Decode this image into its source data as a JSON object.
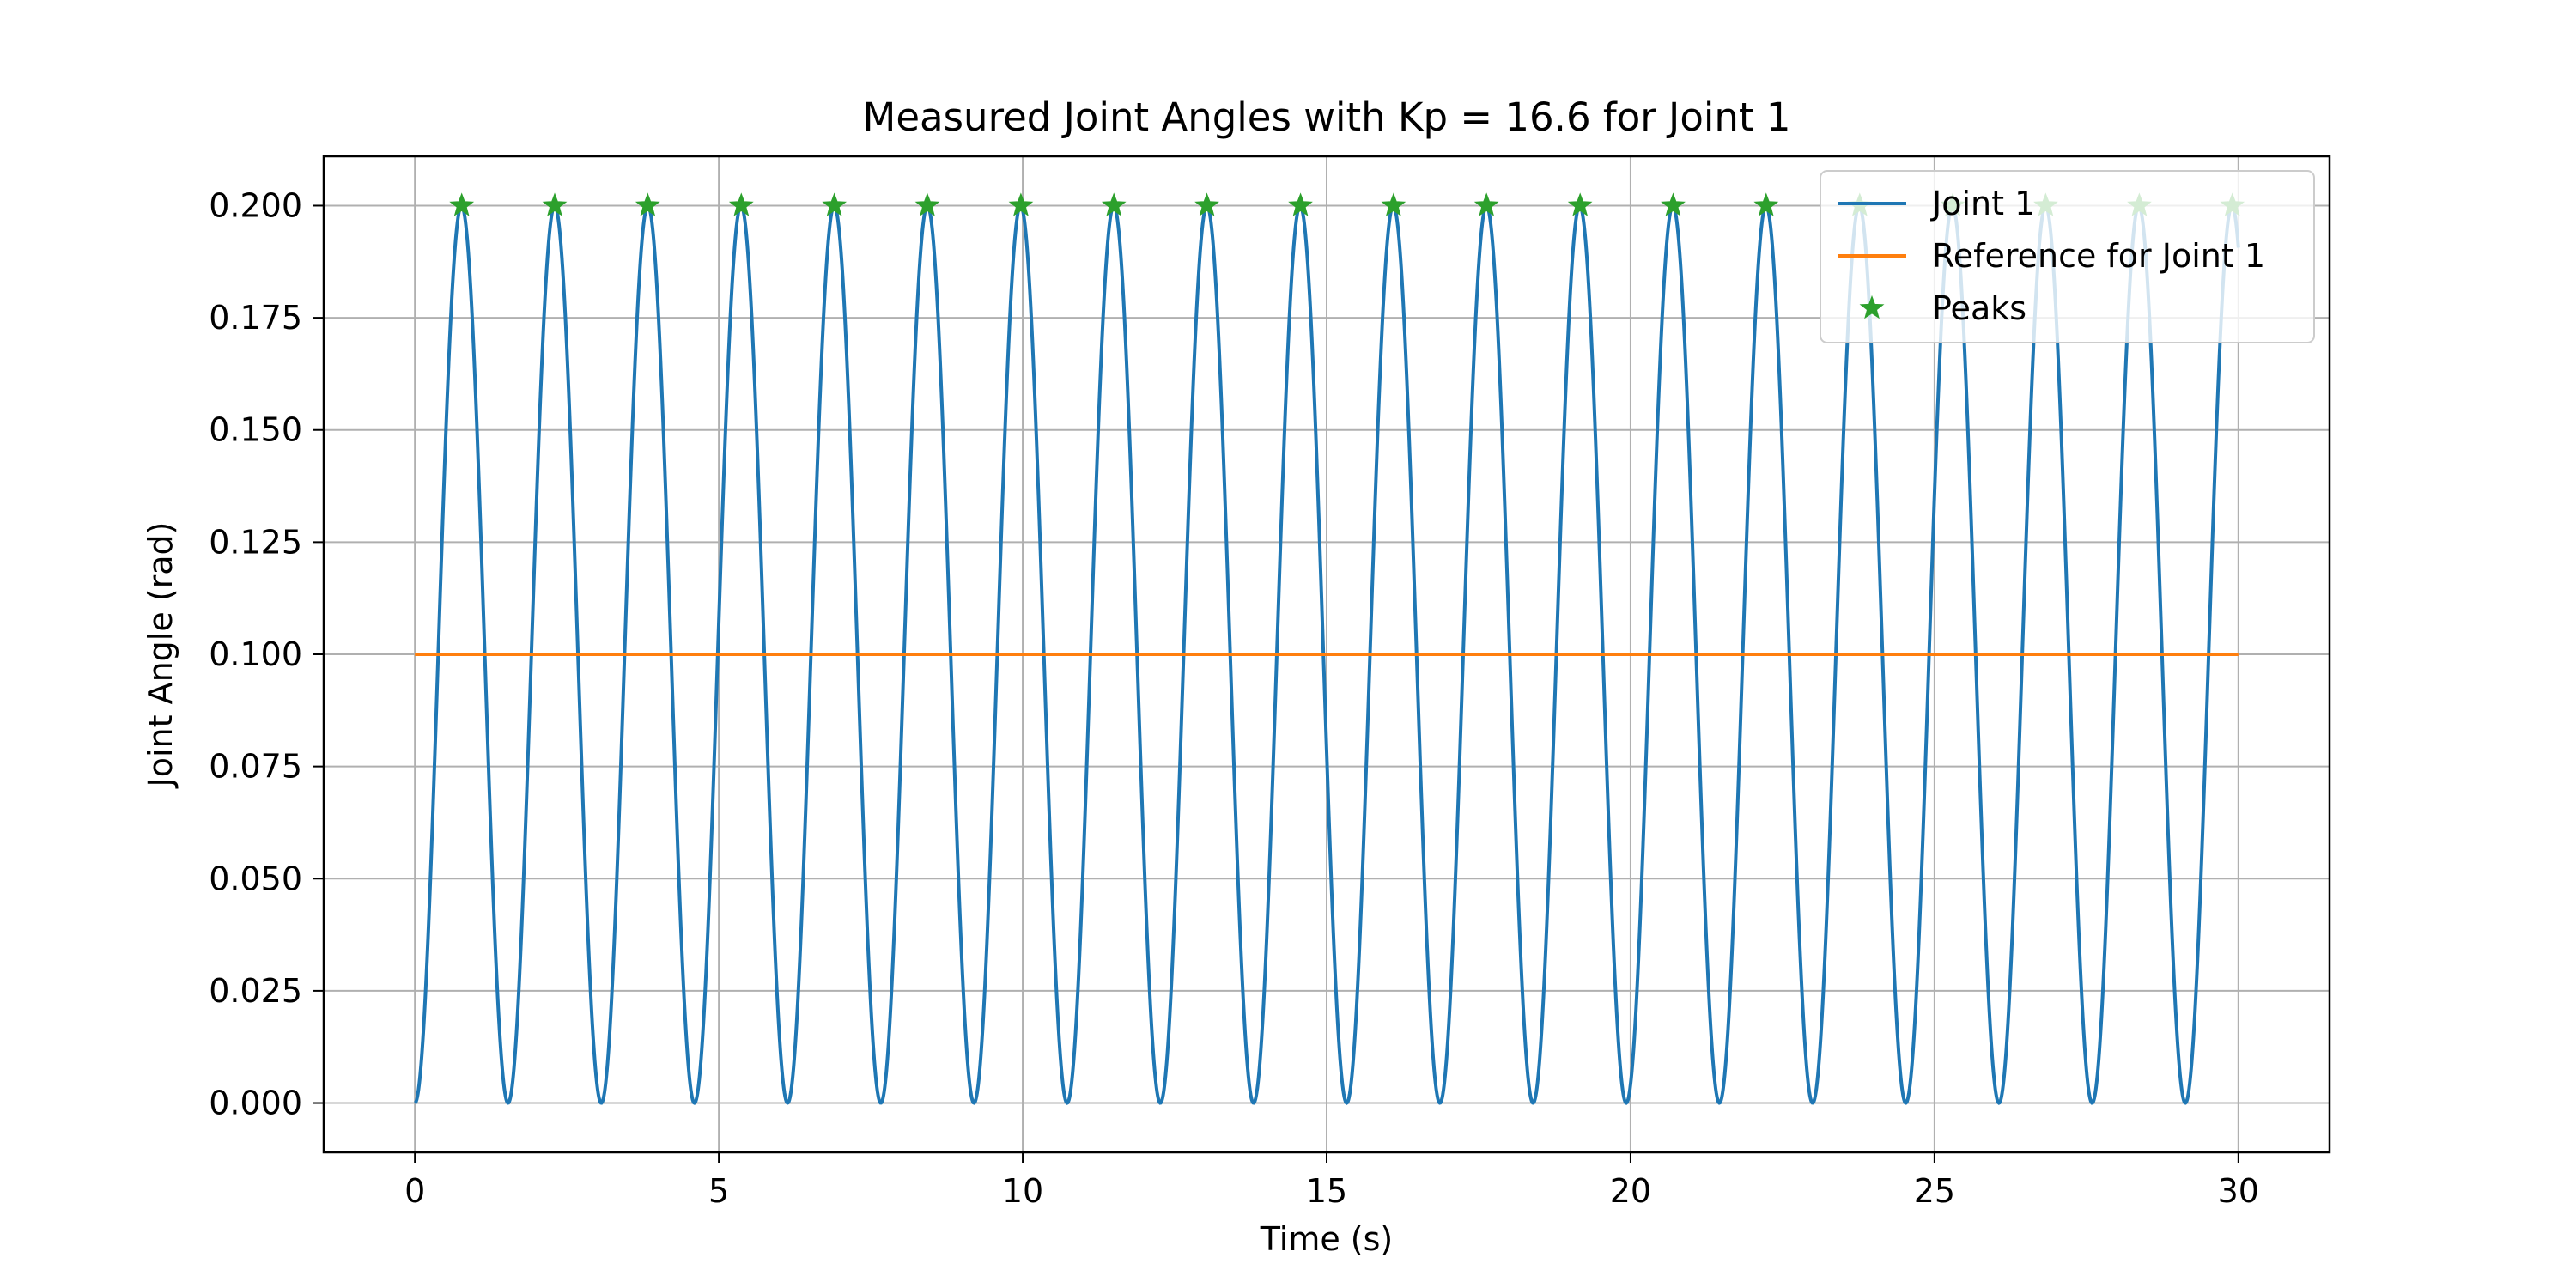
{
  "chart_data": {
    "type": "line",
    "title": "Measured Joint Angles with Kp = 16.6 for Joint 1",
    "xlabel": "Time (s)",
    "ylabel": "Joint Angle (rad)",
    "xlim": [
      -1.5,
      31.5
    ],
    "ylim": [
      -0.011,
      0.211
    ],
    "xticks": [
      0,
      5,
      10,
      15,
      20,
      25,
      30
    ],
    "xtick_labels": [
      "0",
      "5",
      "10",
      "15",
      "20",
      "25",
      "30"
    ],
    "yticks": [
      0.0,
      0.025,
      0.05,
      0.075,
      0.1,
      0.125,
      0.15,
      0.175,
      0.2
    ],
    "ytick_labels": [
      "0.000",
      "0.025",
      "0.050",
      "0.075",
      "0.100",
      "0.125",
      "0.150",
      "0.175",
      "0.200"
    ],
    "grid": true,
    "legend_position": "upper right",
    "series": [
      {
        "name": "Joint 1",
        "kind": "line",
        "color": "#1f77b4",
        "description": "oscillation between 0.000 and 0.200 rad, period ~1.53 s, starting at 0 at t=0, ending near 0.200 at t=30",
        "x_range": [
          0,
          30
        ],
        "min": 0.0,
        "max": 0.2,
        "period": 1.533
      },
      {
        "name": "Reference for Joint 1",
        "kind": "line",
        "color": "#ff7f0e",
        "x": [
          0,
          30
        ],
        "y": [
          0.1,
          0.1
        ]
      },
      {
        "name": "Peaks",
        "kind": "markers",
        "marker": "star",
        "color": "#2ca02c",
        "x": [
          0.77,
          2.3,
          3.83,
          5.37,
          6.9,
          8.43,
          9.97,
          11.5,
          13.03,
          14.57,
          16.1,
          17.63,
          19.17,
          20.7,
          22.23,
          23.77,
          25.3,
          26.83,
          28.37,
          29.9
        ],
        "y": [
          0.2,
          0.2,
          0.2,
          0.2,
          0.2,
          0.2,
          0.2,
          0.2,
          0.2,
          0.2,
          0.2,
          0.2,
          0.2,
          0.2,
          0.2,
          0.2,
          0.2,
          0.2,
          0.2,
          0.2
        ]
      }
    ]
  }
}
